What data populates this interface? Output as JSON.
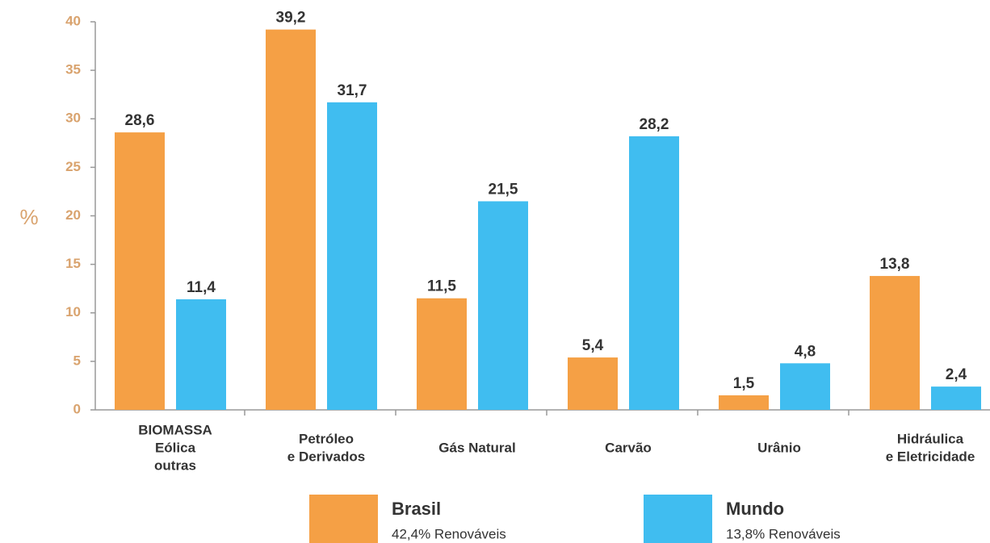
{
  "chart_data": {
    "type": "bar",
    "ylabel": "%",
    "categories": [
      [
        "BIOMASSA",
        "Eólica",
        "outras"
      ],
      [
        "Petróleo",
        "e Derivados"
      ],
      [
        "Gás Natural"
      ],
      [
        "Carvão"
      ],
      [
        "Urânio"
      ],
      [
        "Hidráulica",
        "e Eletricidade"
      ]
    ],
    "series": [
      {
        "name": "Brasil",
        "note": "42,4% Renováveis",
        "color": "#f5a045",
        "values": [
          28.6,
          39.2,
          11.5,
          5.4,
          1.5,
          13.8
        ],
        "value_labels": [
          "28,6",
          "39,2",
          "11,5",
          "5,4",
          "1,5",
          "13,8"
        ]
      },
      {
        "name": "Mundo",
        "note": "13,8% Renováveis",
        "color": "#40bdf0",
        "values": [
          11.4,
          31.7,
          21.5,
          28.2,
          4.8,
          2.4
        ],
        "value_labels": [
          "11,4",
          "31,7",
          "21,5",
          "28,2",
          "4,8",
          "2,4"
        ]
      }
    ],
    "ylim": [
      0,
      40
    ],
    "yticks": [
      0,
      5,
      10,
      15,
      20,
      25,
      30,
      35,
      40
    ],
    "grid": false
  }
}
